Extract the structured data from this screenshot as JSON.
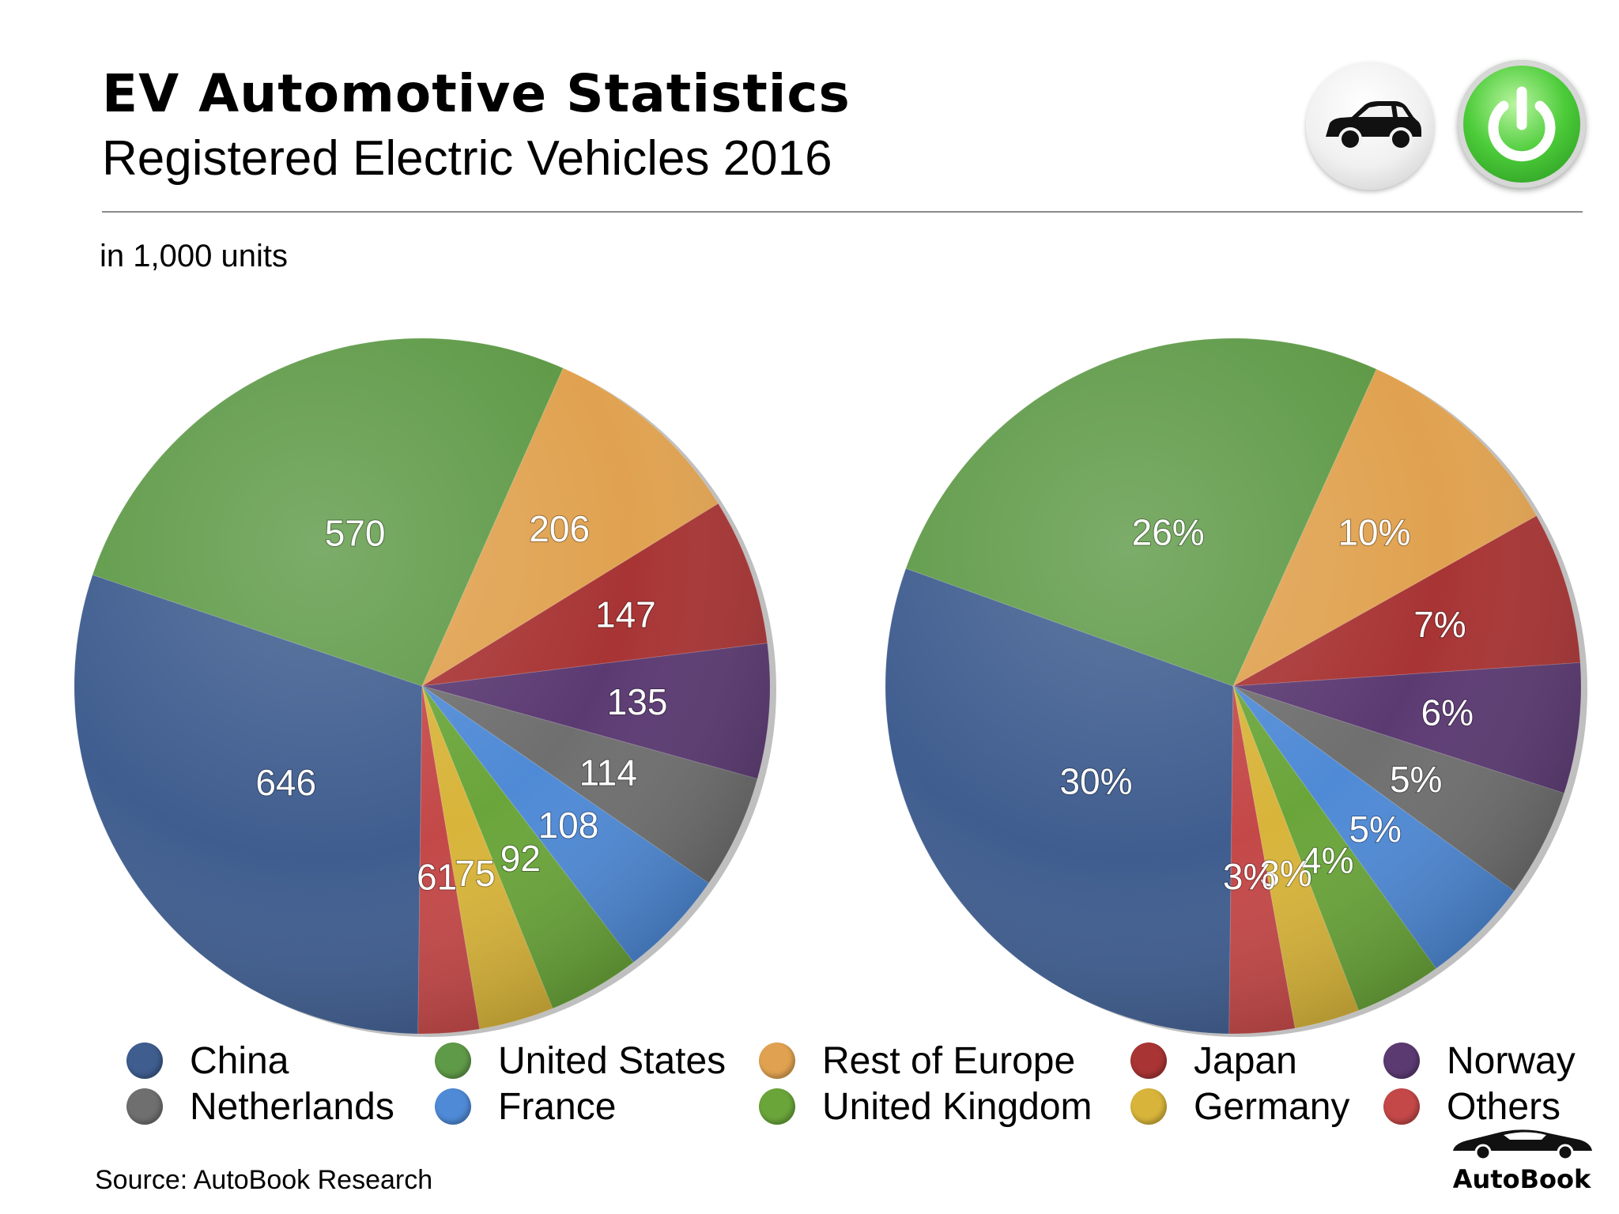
{
  "header": {
    "title": "EV Automotive Statistics",
    "subtitle": "Registered Electric Vehicles 2016",
    "units_note": "in 1,000 units"
  },
  "icons": {
    "car": "car-icon",
    "power": "power-icon"
  },
  "footer": {
    "source": "Source:  AutoBook Research",
    "brand": "AutoBook"
  },
  "colors": {
    "China": "#3f5d8f",
    "United States": "#5f9a48",
    "Rest of Europe": "#e0a250",
    "Japan": "#a83434",
    "Norway": "#5b3a72",
    "Netherlands": "#6f6f6f",
    "France": "#4f8ad6",
    "United Kingdom": "#6aa53a",
    "Germany": "#d8b43a",
    "Others": "#c44848"
  },
  "chart_data": [
    {
      "type": "pie",
      "categories": [
        "China",
        "United States",
        "Rest of Europe",
        "Japan",
        "Norway",
        "Netherlands",
        "France",
        "United Kingdom",
        "Germany",
        "Others"
      ],
      "values": [
        646,
        570,
        206,
        147,
        135,
        114,
        108,
        92,
        75,
        61
      ],
      "labels": [
        "646",
        "570",
        "206",
        "147",
        "135",
        "114",
        "108",
        "92",
        "75",
        "61"
      ],
      "legend": "bottom"
    },
    {
      "type": "pie",
      "categories": [
        "China",
        "United States",
        "Rest of Europe",
        "Japan",
        "Norway",
        "Netherlands",
        "France",
        "United Kingdom",
        "Germany",
        "Others"
      ],
      "values": [
        30,
        26,
        10,
        7,
        6,
        5,
        5,
        4,
        3,
        3
      ],
      "labels": [
        "30%",
        "26%",
        "10%",
        "7%",
        "6%",
        "5%",
        "5%",
        "4%",
        "3%",
        "3%"
      ],
      "legend": "bottom"
    }
  ],
  "legend": [
    "China",
    "United States",
    "Rest of Europe",
    "Japan",
    "Norway",
    "Netherlands",
    "France",
    "United Kingdom",
    "Germany",
    "Others"
  ]
}
